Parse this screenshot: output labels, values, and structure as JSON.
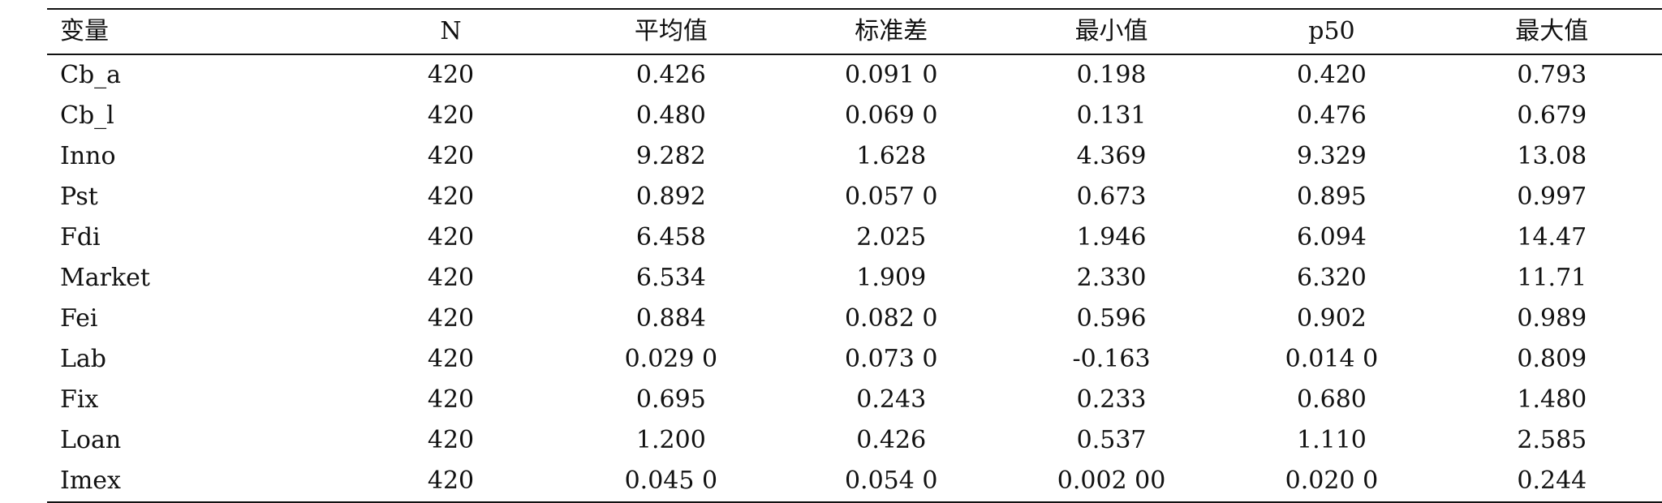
{
  "table": {
    "headers": [
      "变量",
      "N",
      "平均值",
      "标准差",
      "最小值",
      "p50",
      "最大值"
    ],
    "rows": [
      [
        "Cb_a",
        "420",
        "0.426",
        "0.091 0",
        "0.198",
        "0.420",
        "0.793"
      ],
      [
        "Cb_l",
        "420",
        "0.480",
        "0.069 0",
        "0.131",
        "0.476",
        "0.679"
      ],
      [
        "Inno",
        "420",
        "9.282",
        "1.628",
        "4.369",
        "9.329",
        "13.08"
      ],
      [
        "Pst",
        "420",
        "0.892",
        "0.057 0",
        "0.673",
        "0.895",
        "0.997"
      ],
      [
        "Fdi",
        "420",
        "6.458",
        "2.025",
        "1.946",
        "6.094",
        "14.47"
      ],
      [
        "Market",
        "420",
        "6.534",
        "1.909",
        "2.330",
        "6.320",
        "11.71"
      ],
      [
        "Fei",
        "420",
        "0.884",
        "0.082 0",
        "0.596",
        "0.902",
        "0.989"
      ],
      [
        "Lab",
        "420",
        "0.029 0",
        "0.073 0",
        "-0.163",
        "0.014 0",
        "0.809"
      ],
      [
        "Fix",
        "420",
        "0.695",
        "0.243",
        "0.233",
        "0.680",
        "1.480"
      ],
      [
        "Loan",
        "420",
        "1.200",
        "0.426",
        "0.537",
        "1.110",
        "2.585"
      ],
      [
        "Imex",
        "420",
        "0.045 0",
        "0.054 0",
        "0.002 00",
        "0.020 0",
        "0.244"
      ]
    ]
  }
}
